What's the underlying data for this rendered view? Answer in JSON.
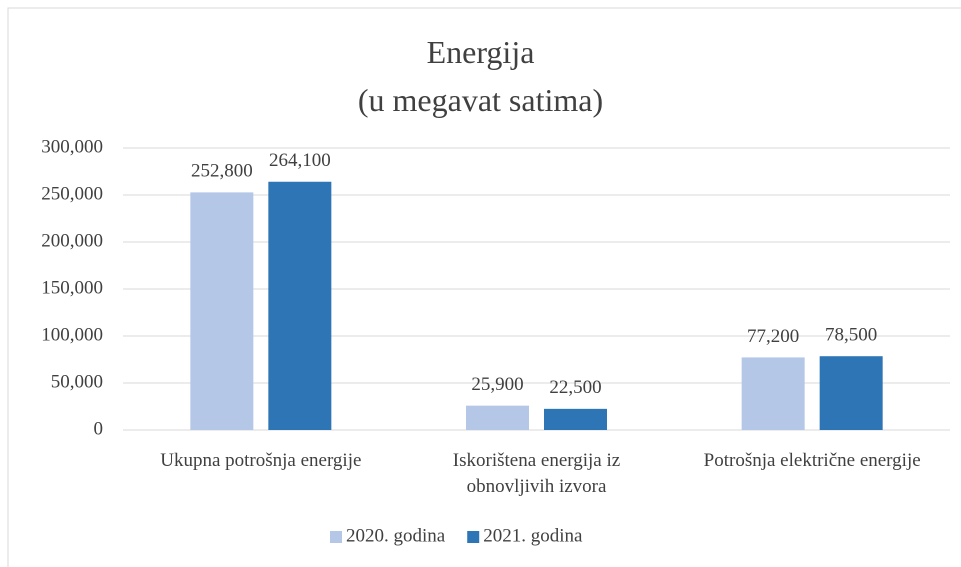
{
  "chart_data": {
    "type": "bar",
    "title": "Energija\n(u megavat satima)",
    "categories": [
      "Ukupna potrošnja energije",
      "Iskorištena energija iz obnovljivih izvora",
      "Potrošnja električne energije"
    ],
    "series": [
      {
        "name": "2020. godina",
        "color": "#b4c7e7",
        "values": [
          252800,
          25900,
          77200
        ],
        "value_labels": [
          "252,800",
          "25,900",
          "77,200"
        ]
      },
      {
        "name": "2021. godina",
        "color": "#2e75b6",
        "values": [
          264100,
          22500,
          78500
        ],
        "value_labels": [
          "264,100",
          "22,500",
          "78,500"
        ]
      }
    ],
    "ylim": [
      0,
      300000
    ],
    "yticks": [
      0,
      {
        "value": 50000,
        "label": "50,000"
      },
      {
        "value": 100000,
        "label": "100,000"
      },
      {
        "value": 150000,
        "label": "150,000"
      },
      {
        "value": 200000,
        "label": "200,000"
      },
      {
        "value": 250000,
        "label": "250,000"
      },
      {
        "value": 300000,
        "label": "300,000"
      }
    ],
    "grid": true,
    "legend": "bottom"
  }
}
